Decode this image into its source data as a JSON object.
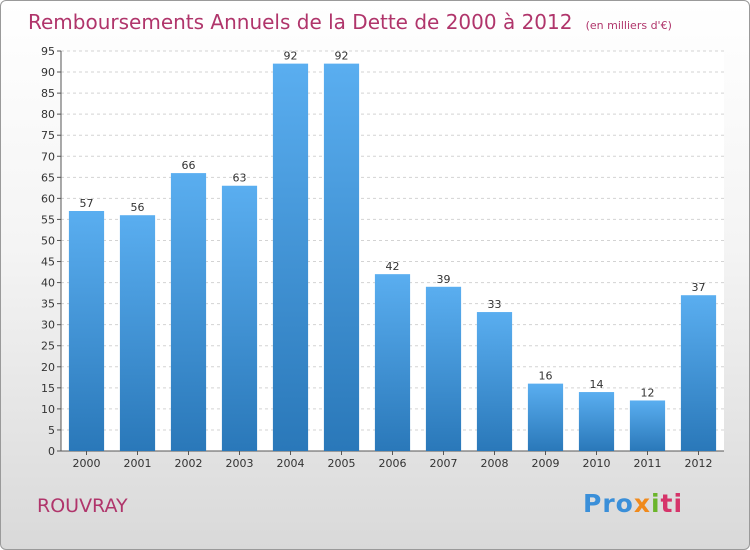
{
  "header": {
    "title": "Remboursements Annuels de la Dette de 2000 à 2012",
    "unit": "(en milliers d'€)"
  },
  "footer": {
    "commune": "ROUVRAY",
    "logo": [
      "Pro",
      "x",
      "i",
      "ti"
    ]
  },
  "colors": {
    "bar_light": "#5aaef0",
    "bar_dark": "#2a78b9",
    "title": "#b0356b"
  },
  "chart_data": {
    "type": "bar",
    "title": "Remboursements Annuels de la Dette de 2000 à 2012",
    "subtitle": "(en milliers d'€)",
    "categories": [
      "2000",
      "2001",
      "2002",
      "2003",
      "2004",
      "2005",
      "2006",
      "2007",
      "2008",
      "2009",
      "2010",
      "2011",
      "2012"
    ],
    "values": [
      57,
      56,
      66,
      63,
      92,
      92,
      42,
      39,
      33,
      16,
      14,
      12,
      37
    ],
    "ylim": [
      0,
      95
    ],
    "yticks": [
      0,
      5,
      10,
      15,
      20,
      25,
      30,
      35,
      40,
      45,
      50,
      55,
      60,
      65,
      70,
      75,
      80,
      85,
      90,
      95
    ],
    "grid": true,
    "legend": "none"
  }
}
